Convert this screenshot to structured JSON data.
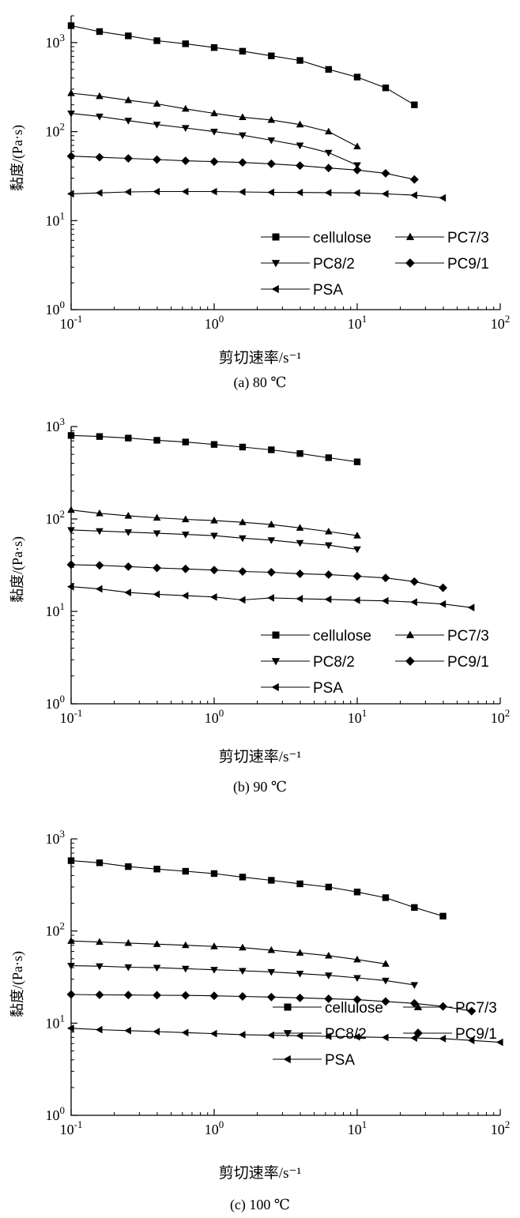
{
  "chart_data": [
    {
      "type": "line",
      "caption": "(a) 80 ℃",
      "xlabel": "剪切速率/s⁻¹",
      "ylabel": "黏度/(Pa·s)",
      "xscale": "log",
      "yscale": "log",
      "xlim": [
        0.1,
        100
      ],
      "ylim": [
        1,
        2000
      ],
      "x_ticks": [
        {
          "e": "-1"
        },
        {
          "e": "0"
        },
        {
          "e": "1"
        },
        {
          "e": "2"
        }
      ],
      "y_ticks": [
        {
          "e": "0"
        },
        {
          "e": "1"
        },
        {
          "e": "2"
        },
        {
          "e": "3"
        }
      ],
      "legend": "inside lower right",
      "series": [
        {
          "name": "cellulose",
          "marker": "square",
          "x": [
            0.1,
            0.158,
            0.251,
            0.398,
            0.631,
            1.0,
            1.58,
            2.51,
            3.98,
            6.31,
            10.0,
            15.8,
            25.1
          ],
          "y": [
            1550,
            1330,
            1190,
            1050,
            970,
            880,
            800,
            710,
            630,
            500,
            410,
            310,
            200
          ]
        },
        {
          "name": "PC7/3",
          "marker": "triangle-up",
          "x": [
            0.1,
            0.158,
            0.251,
            0.398,
            0.631,
            1.0,
            1.58,
            2.51,
            3.98,
            6.31,
            10.0
          ],
          "y": [
            270,
            250,
            225,
            205,
            180,
            160,
            145,
            135,
            120,
            100,
            68
          ]
        },
        {
          "name": "PC8/2",
          "marker": "triangle-down",
          "x": [
            0.1,
            0.158,
            0.251,
            0.398,
            0.631,
            1.0,
            1.58,
            2.51,
            3.98,
            6.31,
            10.0
          ],
          "y": [
            160,
            148,
            133,
            120,
            110,
            100,
            91,
            80,
            70,
            58,
            42
          ]
        },
        {
          "name": "PC9/1",
          "marker": "diamond",
          "x": [
            0.1,
            0.158,
            0.251,
            0.398,
            0.631,
            1.0,
            1.58,
            2.51,
            3.98,
            6.31,
            10.0,
            15.8,
            25.1
          ],
          "y": [
            53,
            51.5,
            50,
            48.5,
            47,
            46,
            45,
            43.5,
            41.5,
            39,
            37,
            34,
            29
          ]
        },
        {
          "name": "PSA",
          "marker": "triangle-left",
          "x": [
            0.1,
            0.158,
            0.251,
            0.398,
            0.631,
            1.0,
            1.58,
            2.51,
            3.98,
            6.31,
            10.0,
            15.8,
            25.1,
            39.8
          ],
          "y": [
            20,
            20.5,
            21,
            21.2,
            21.2,
            21.2,
            21,
            20.8,
            20.7,
            20.6,
            20.5,
            20,
            19.3,
            18
          ]
        }
      ]
    },
    {
      "type": "line",
      "caption": "(b) 90 ℃",
      "xlabel": "剪切速率/s⁻¹",
      "ylabel": "黏度/(Pa·s)",
      "xscale": "log",
      "yscale": "log",
      "xlim": [
        0.1,
        100
      ],
      "ylim": [
        1,
        1000
      ],
      "x_ticks": [
        {
          "e": "-1"
        },
        {
          "e": "0"
        },
        {
          "e": "1"
        },
        {
          "e": "2"
        }
      ],
      "y_ticks": [
        {
          "e": "0"
        },
        {
          "e": "1"
        },
        {
          "e": "2"
        },
        {
          "e": "3"
        }
      ],
      "legend": "inside lower right",
      "series": [
        {
          "name": "cellulose",
          "marker": "square",
          "x": [
            0.1,
            0.158,
            0.251,
            0.398,
            0.631,
            1.0,
            1.58,
            2.51,
            3.98,
            6.31,
            10.0
          ],
          "y": [
            800,
            780,
            750,
            710,
            680,
            640,
            600,
            560,
            510,
            460,
            415
          ]
        },
        {
          "name": "PC7/3",
          "marker": "triangle-up",
          "x": [
            0.1,
            0.158,
            0.251,
            0.398,
            0.631,
            1.0,
            1.58,
            2.51,
            3.98,
            6.31,
            10.0
          ],
          "y": [
            125,
            115,
            108,
            103,
            99,
            96,
            92,
            87,
            80,
            73,
            66
          ]
        },
        {
          "name": "PC8/2",
          "marker": "triangle-down",
          "x": [
            0.1,
            0.158,
            0.251,
            0.398,
            0.631,
            1.0,
            1.58,
            2.51,
            3.98,
            6.31,
            10.0
          ],
          "y": [
            76,
            74,
            72,
            70,
            68,
            66,
            62,
            59,
            55,
            52,
            47
          ]
        },
        {
          "name": "PC9/1",
          "marker": "diamond",
          "x": [
            0.1,
            0.158,
            0.251,
            0.398,
            0.631,
            1.0,
            1.58,
            2.51,
            3.98,
            6.31,
            10.0,
            15.8,
            25.1,
            39.8
          ],
          "y": [
            32,
            31.5,
            30.5,
            29.5,
            28.8,
            28,
            27,
            26.5,
            25.5,
            25,
            24,
            23,
            21,
            18
          ]
        },
        {
          "name": "PSA",
          "marker": "triangle-left",
          "x": [
            0.1,
            0.158,
            0.251,
            0.398,
            0.631,
            1.0,
            1.58,
            2.51,
            3.98,
            6.31,
            10.0,
            15.8,
            25.1,
            39.8,
            63.1
          ],
          "y": [
            18.5,
            17.5,
            16,
            15.3,
            14.8,
            14.3,
            13.3,
            14,
            13.7,
            13.5,
            13.2,
            13,
            12.6,
            12,
            11
          ]
        }
      ]
    },
    {
      "type": "line",
      "caption": "(c) 100 ℃",
      "xlabel": "剪切速率/s⁻¹",
      "ylabel": "黏度/(Pa·s)",
      "xscale": "log",
      "yscale": "log",
      "xlim": [
        0.1,
        100
      ],
      "ylim": [
        1,
        1000
      ],
      "x_ticks": [
        {
          "e": "-1"
        },
        {
          "e": "0"
        },
        {
          "e": "1"
        },
        {
          "e": "2"
        }
      ],
      "y_ticks": [
        {
          "e": "0"
        },
        {
          "e": "1"
        },
        {
          "e": "2"
        },
        {
          "e": "3"
        }
      ],
      "legend": "inside lower right",
      "series": [
        {
          "name": "cellulose",
          "marker": "square",
          "x": [
            0.1,
            0.158,
            0.251,
            0.398,
            0.631,
            1.0,
            1.58,
            2.51,
            3.98,
            6.31,
            10.0,
            15.8,
            25.1,
            39.8
          ],
          "y": [
            580,
            550,
            500,
            470,
            445,
            420,
            385,
            355,
            325,
            300,
            265,
            230,
            180,
            145
          ]
        },
        {
          "name": "PC7/3",
          "marker": "triangle-up",
          "x": [
            0.1,
            0.158,
            0.251,
            0.398,
            0.631,
            1.0,
            1.58,
            2.51,
            3.98,
            6.31,
            10.0,
            15.8
          ],
          "y": [
            78,
            76,
            74,
            72,
            70,
            68,
            66,
            62,
            58,
            54,
            49,
            44
          ]
        },
        {
          "name": "PC8/2",
          "marker": "triangle-down",
          "x": [
            0.1,
            0.158,
            0.251,
            0.398,
            0.631,
            1.0,
            1.58,
            2.51,
            3.98,
            6.31,
            10.0,
            15.8,
            25.1
          ],
          "y": [
            42,
            41.5,
            40.5,
            40,
            39,
            38,
            37,
            36,
            34.5,
            33,
            31,
            29,
            26
          ]
        },
        {
          "name": "PC9/1",
          "marker": "diamond",
          "x": [
            0.1,
            0.158,
            0.251,
            0.398,
            0.631,
            1.0,
            1.58,
            2.51,
            3.98,
            6.31,
            10.0,
            15.8,
            25.1,
            39.8,
            63.1
          ],
          "y": [
            20.5,
            20.3,
            20.2,
            20.1,
            20,
            19.8,
            19.5,
            19.2,
            18.8,
            18.4,
            18,
            17.2,
            16.4,
            15.2,
            13.5
          ]
        },
        {
          "name": "PSA",
          "marker": "triangle-left",
          "x": [
            0.1,
            0.158,
            0.251,
            0.398,
            0.631,
            1.0,
            1.58,
            2.51,
            3.98,
            6.31,
            10.0,
            15.8,
            25.1,
            39.8,
            63.1,
            100
          ],
          "y": [
            8.8,
            8.5,
            8.3,
            8.1,
            7.9,
            7.7,
            7.5,
            7.4,
            7.3,
            7.2,
            7.1,
            7.0,
            6.9,
            6.8,
            6.5,
            6.2
          ]
        }
      ]
    }
  ]
}
